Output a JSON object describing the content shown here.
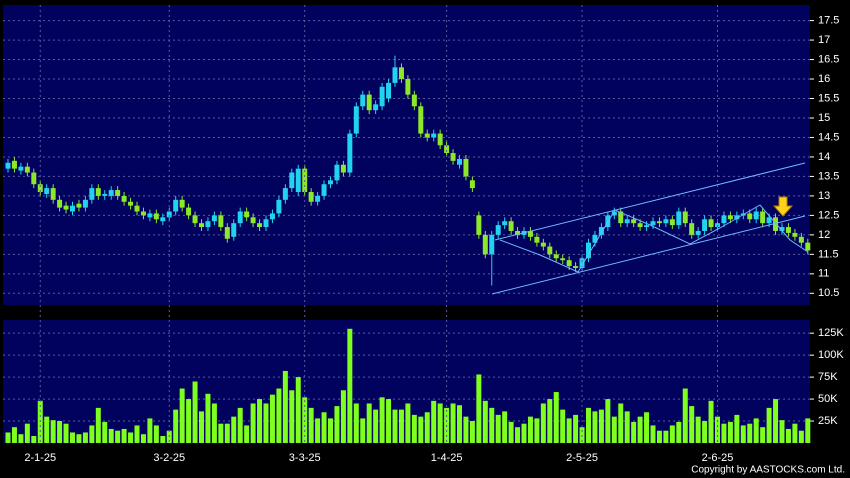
{
  "chart_data": [
    {
      "type": "candlestick",
      "up_color": "#22d3f0",
      "down_color": "#8ee82a",
      "open": [
        13.7,
        13.9,
        13.65,
        13.75,
        13.6,
        13.3,
        13.05,
        13.2,
        12.9,
        12.75,
        12.6,
        12.8,
        12.7,
        12.9,
        13.2,
        13.0,
        13.0,
        13.15,
        13.0,
        12.85,
        12.75,
        12.6,
        12.45,
        12.55,
        12.35,
        12.45,
        12.6,
        12.9,
        12.7,
        12.5,
        12.3,
        12.2,
        12.35,
        12.5,
        12.2,
        11.95,
        12.3,
        12.6,
        12.45,
        12.3,
        12.2,
        12.4,
        12.55,
        12.9,
        13.2,
        13.1,
        13.7,
        13.1,
        12.85,
        13.0,
        13.3,
        13.4,
        13.8,
        13.6,
        14.6,
        15.3,
        15.6,
        15.2,
        15.3,
        15.5,
        15.9,
        16.3,
        16.0,
        15.6,
        15.3,
        14.6,
        14.5,
        14.6,
        14.3,
        14.1,
        13.8,
        13.95,
        13.4,
        12.5,
        12.0,
        11.5,
        12.0,
        12.25,
        12.35,
        12.1,
        12.0,
        12.1,
        11.95,
        11.8,
        11.7,
        11.5,
        11.4,
        11.35,
        11.2,
        11.15,
        11.4,
        11.8,
        12.0,
        12.2,
        12.5,
        12.6,
        12.3,
        12.4,
        12.3,
        12.2,
        12.25,
        12.35,
        12.3,
        12.4,
        12.25,
        12.6,
        12.3,
        12.0,
        12.1,
        12.4,
        12.2,
        12.3,
        12.5,
        12.4,
        12.5,
        12.55,
        12.4,
        12.6,
        12.3,
        12.45,
        12.1,
        12.2,
        12.05,
        11.95,
        11.8
      ],
      "high": [
        13.95,
        14.0,
        13.85,
        13.85,
        13.7,
        13.4,
        13.3,
        13.3,
        13.0,
        12.85,
        12.85,
        12.9,
        13.0,
        13.3,
        13.3,
        13.15,
        13.25,
        13.25,
        13.1,
        12.95,
        12.85,
        12.7,
        12.65,
        12.65,
        12.55,
        12.7,
        13.0,
        13.0,
        12.8,
        12.6,
        12.4,
        12.45,
        12.6,
        12.6,
        12.3,
        12.4,
        12.7,
        12.7,
        12.55,
        12.4,
        12.5,
        12.65,
        13.0,
        13.3,
        13.7,
        13.8,
        13.8,
        13.2,
        13.1,
        13.4,
        13.5,
        13.9,
        13.9,
        14.7,
        15.4,
        15.7,
        15.7,
        15.45,
        15.9,
        16.0,
        16.6,
        16.4,
        16.1,
        15.7,
        15.4,
        14.7,
        14.7,
        14.7,
        14.4,
        14.2,
        14.05,
        14.05,
        13.5,
        12.6,
        12.1,
        12.1,
        12.35,
        12.45,
        12.45,
        12.2,
        12.2,
        12.2,
        12.05,
        11.9,
        11.8,
        11.6,
        11.5,
        11.45,
        11.3,
        11.5,
        11.9,
        12.1,
        12.3,
        12.6,
        12.7,
        12.7,
        12.5,
        12.5,
        12.4,
        12.35,
        12.45,
        12.45,
        12.5,
        12.5,
        12.7,
        12.7,
        12.4,
        12.2,
        12.5,
        12.5,
        12.4,
        12.6,
        12.6,
        12.6,
        12.65,
        12.65,
        12.7,
        12.7,
        12.55,
        12.55,
        12.3,
        12.3,
        12.15,
        12.05,
        11.9
      ],
      "low": [
        13.6,
        13.6,
        13.55,
        13.5,
        13.2,
        13.0,
        12.95,
        12.8,
        12.6,
        12.55,
        12.5,
        12.6,
        12.6,
        12.8,
        12.9,
        12.9,
        12.9,
        12.9,
        12.75,
        12.65,
        12.5,
        12.4,
        12.35,
        12.3,
        12.25,
        12.35,
        12.5,
        12.6,
        12.4,
        12.2,
        12.1,
        12.1,
        12.25,
        12.1,
        11.8,
        11.85,
        12.2,
        12.35,
        12.2,
        12.1,
        12.1,
        12.3,
        12.45,
        12.8,
        13.1,
        13.0,
        13.0,
        12.75,
        12.75,
        12.9,
        13.2,
        13.3,
        13.5,
        13.5,
        14.5,
        15.2,
        15.1,
        15.1,
        15.2,
        15.4,
        15.8,
        15.9,
        15.5,
        15.2,
        14.5,
        14.4,
        14.4,
        14.2,
        14.0,
        13.8,
        13.7,
        13.4,
        13.1,
        11.9,
        11.4,
        10.7,
        11.9,
        12.15,
        12.0,
        11.9,
        11.9,
        11.85,
        11.7,
        11.6,
        11.4,
        11.3,
        11.25,
        11.1,
        11.05,
        11.05,
        11.3,
        11.7,
        11.9,
        12.1,
        12.4,
        12.2,
        12.2,
        12.2,
        12.1,
        12.1,
        12.15,
        12.2,
        12.2,
        12.15,
        12.15,
        12.2,
        11.9,
        11.9,
        12.0,
        12.1,
        12.1,
        12.2,
        12.3,
        12.3,
        12.4,
        12.3,
        12.3,
        12.2,
        12.2,
        12.0,
        12.0,
        11.95,
        11.85,
        11.7,
        11.5
      ],
      "close": [
        13.85,
        13.7,
        13.75,
        13.6,
        13.3,
        13.1,
        13.2,
        12.9,
        12.7,
        12.65,
        12.75,
        12.7,
        12.9,
        13.2,
        13.0,
        13.05,
        13.15,
        13.0,
        12.85,
        12.75,
        12.6,
        12.5,
        12.55,
        12.4,
        12.45,
        12.6,
        12.9,
        12.7,
        12.5,
        12.3,
        12.2,
        12.35,
        12.5,
        12.2,
        11.9,
        12.3,
        12.6,
        12.45,
        12.3,
        12.2,
        12.4,
        12.55,
        12.9,
        13.2,
        13.6,
        13.7,
        13.1,
        12.85,
        13.0,
        13.3,
        13.4,
        13.8,
        13.6,
        14.6,
        15.3,
        15.6,
        15.2,
        15.35,
        15.8,
        15.9,
        16.3,
        16.0,
        15.6,
        15.3,
        14.6,
        14.5,
        14.6,
        14.3,
        14.1,
        13.9,
        13.95,
        13.5,
        13.2,
        12.0,
        11.5,
        12.0,
        12.25,
        12.35,
        12.1,
        12.0,
        12.1,
        11.95,
        11.8,
        11.7,
        11.5,
        11.4,
        11.35,
        11.2,
        11.15,
        11.4,
        11.8,
        12.0,
        12.2,
        12.5,
        12.6,
        12.3,
        12.4,
        12.3,
        12.2,
        12.25,
        12.35,
        12.3,
        12.4,
        12.25,
        12.6,
        12.3,
        12.0,
        12.1,
        12.4,
        12.2,
        12.3,
        12.5,
        12.4,
        12.5,
        12.55,
        12.4,
        12.6,
        12.3,
        12.45,
        12.1,
        12.2,
        12.05,
        11.95,
        11.8,
        11.6
      ],
      "ylim": [
        10.2,
        17.9
      ],
      "yticks": [
        10.5,
        11,
        11.5,
        12,
        12.5,
        13,
        13.5,
        14,
        14.5,
        15,
        15.5,
        16,
        16.5,
        17,
        17.5
      ],
      "grid": true
    },
    {
      "type": "bar",
      "color": "#7fff1e",
      "categories": [
        null,
        null,
        null,
        null,
        null,
        "2-1-25",
        null,
        null,
        null,
        null,
        null,
        null,
        null,
        null,
        null,
        null,
        null,
        null,
        null,
        null,
        null,
        null,
        null,
        null,
        null,
        "3-2-25",
        null,
        null,
        null,
        null,
        null,
        null,
        null,
        null,
        null,
        null,
        null,
        null,
        null,
        null,
        null,
        null,
        null,
        null,
        null,
        null,
        "3-3-25",
        null,
        null,
        null,
        null,
        null,
        null,
        null,
        null,
        null,
        null,
        null,
        null,
        null,
        null,
        null,
        null,
        null,
        null,
        null,
        null,
        null,
        "1-4-25",
        null,
        null,
        null,
        null,
        null,
        null,
        null,
        null,
        null,
        null,
        null,
        null,
        null,
        null,
        null,
        null,
        null,
        null,
        null,
        null,
        "2-5-25",
        null,
        null,
        null,
        null,
        null,
        null,
        null,
        null,
        null,
        null,
        null,
        null,
        null,
        null,
        null,
        null,
        null,
        null,
        null,
        null,
        "2-6-25",
        null,
        null,
        null,
        null,
        null,
        null,
        null,
        null,
        null,
        null,
        null,
        null,
        null,
        null
      ],
      "values": [
        12000,
        18000,
        10000,
        22000,
        8000,
        48000,
        30000,
        26000,
        25000,
        22000,
        12000,
        10000,
        12000,
        20000,
        40000,
        24000,
        16000,
        14000,
        16000,
        12000,
        20000,
        10000,
        28000,
        20000,
        8000,
        14000,
        38000,
        62000,
        50000,
        70000,
        36000,
        56000,
        45000,
        22000,
        22000,
        30000,
        40000,
        20000,
        45000,
        50000,
        45000,
        55000,
        62000,
        82000,
        60000,
        75000,
        52000,
        40000,
        28000,
        35000,
        28000,
        42000,
        60000,
        130000,
        45000,
        28000,
        45000,
        38000,
        52000,
        50000,
        38000,
        38000,
        45000,
        32000,
        30000,
        35000,
        48000,
        45000,
        40000,
        45000,
        43000,
        30000,
        25000,
        78000,
        48000,
        40000,
        32000,
        36000,
        24000,
        18000,
        22000,
        30000,
        28000,
        45000,
        50000,
        58000,
        38000,
        28000,
        32000,
        18000,
        40000,
        36000,
        38000,
        50000,
        30000,
        45000,
        36000,
        24000,
        30000,
        35000,
        20000,
        14000,
        14000,
        20000,
        24000,
        62000,
        42000,
        30000,
        25000,
        48000,
        30000,
        22000,
        24000,
        32000,
        20000,
        22000,
        28000,
        18000,
        40000,
        50000,
        26000,
        16000,
        22000,
        14000,
        28000
      ],
      "ylim": [
        0,
        140000
      ],
      "yticks": [
        {
          "value": 25000,
          "label": "25K"
        },
        {
          "value": 50000,
          "label": "50K"
        },
        {
          "value": 75000,
          "label": "75K"
        },
        {
          "value": 100000,
          "label": "100K"
        },
        {
          "value": 125000,
          "label": "125K"
        }
      ],
      "grid": true
    }
  ],
  "footer": "Copyright by AASTOCKS.com Ltd."
}
